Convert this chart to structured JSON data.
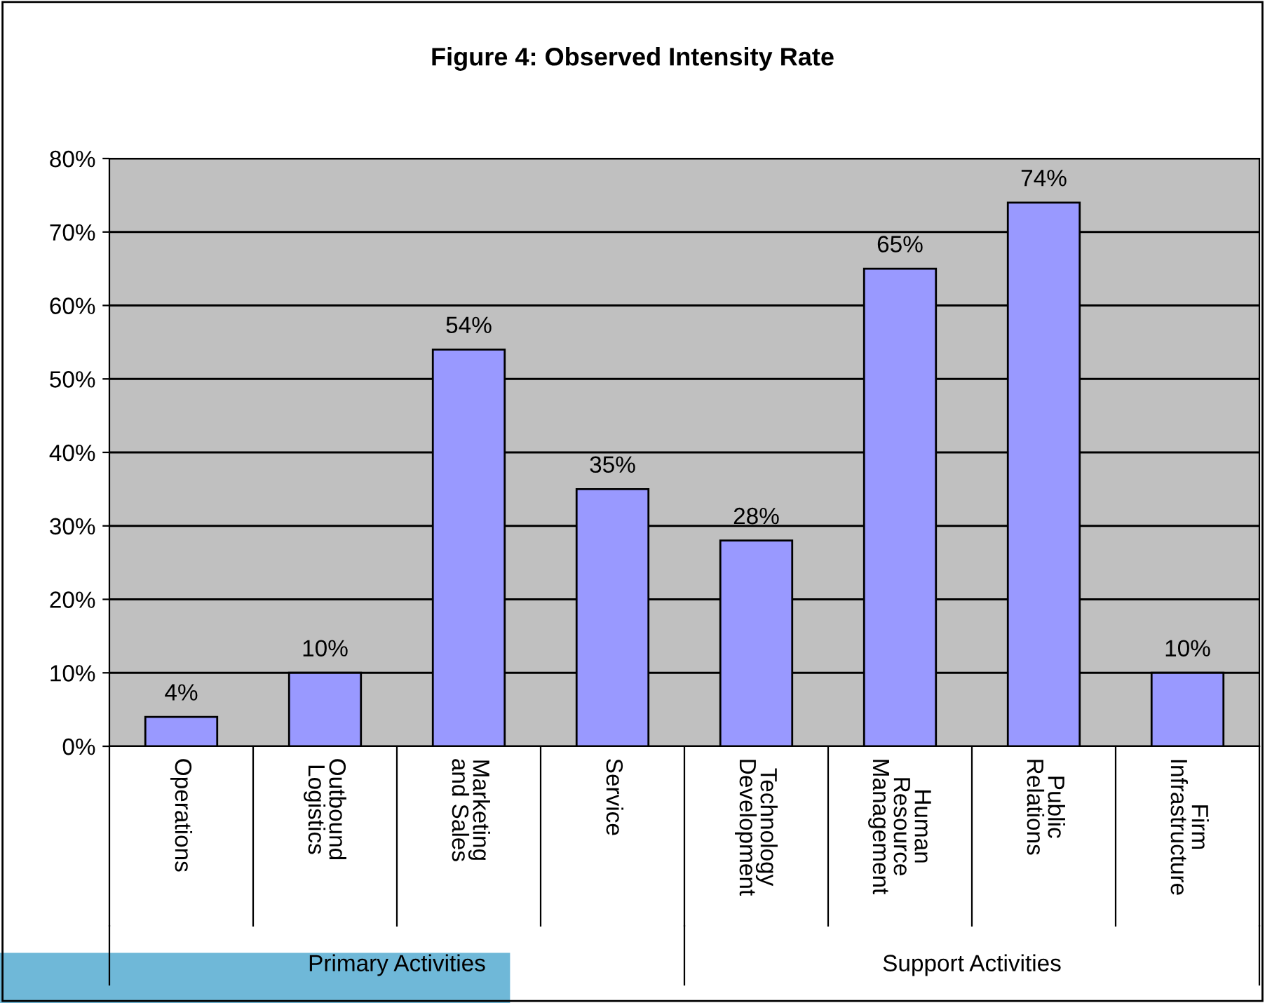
{
  "chart_data": {
    "type": "bar",
    "title": "Figure 4: Observed Intensity Rate",
    "categories": [
      "Operations",
      "Outbound\nLogistics",
      "Marketing\nand Sales",
      "Service",
      "Technology\nDevelopment",
      "Human\nResource\nManagement",
      "Public\nRelations",
      "Firm\nInfrastructure"
    ],
    "values": [
      4,
      10,
      54,
      35,
      28,
      65,
      74,
      10
    ],
    "color": "#9999ff",
    "ylim": [
      0,
      80
    ],
    "yticks": [
      {
        "value": 0,
        "label": "0%"
      },
      {
        "value": 10,
        "label": "10%"
      },
      {
        "value": 20,
        "label": "20%"
      },
      {
        "value": 30,
        "label": "30%"
      },
      {
        "value": 40,
        "label": "40%"
      },
      {
        "value": 50,
        "label": "50%"
      },
      {
        "value": 60,
        "label": "60%"
      },
      {
        "value": 70,
        "label": "70%"
      },
      {
        "value": 80,
        "label": "80%"
      }
    ],
    "value_labels": [
      "4%",
      "10%",
      "54%",
      "35%",
      "28%",
      "65%",
      "74%",
      "10%"
    ],
    "annotations": [
      "Primary Activities",
      "Support Activities"
    ],
    "grid": "y"
  }
}
